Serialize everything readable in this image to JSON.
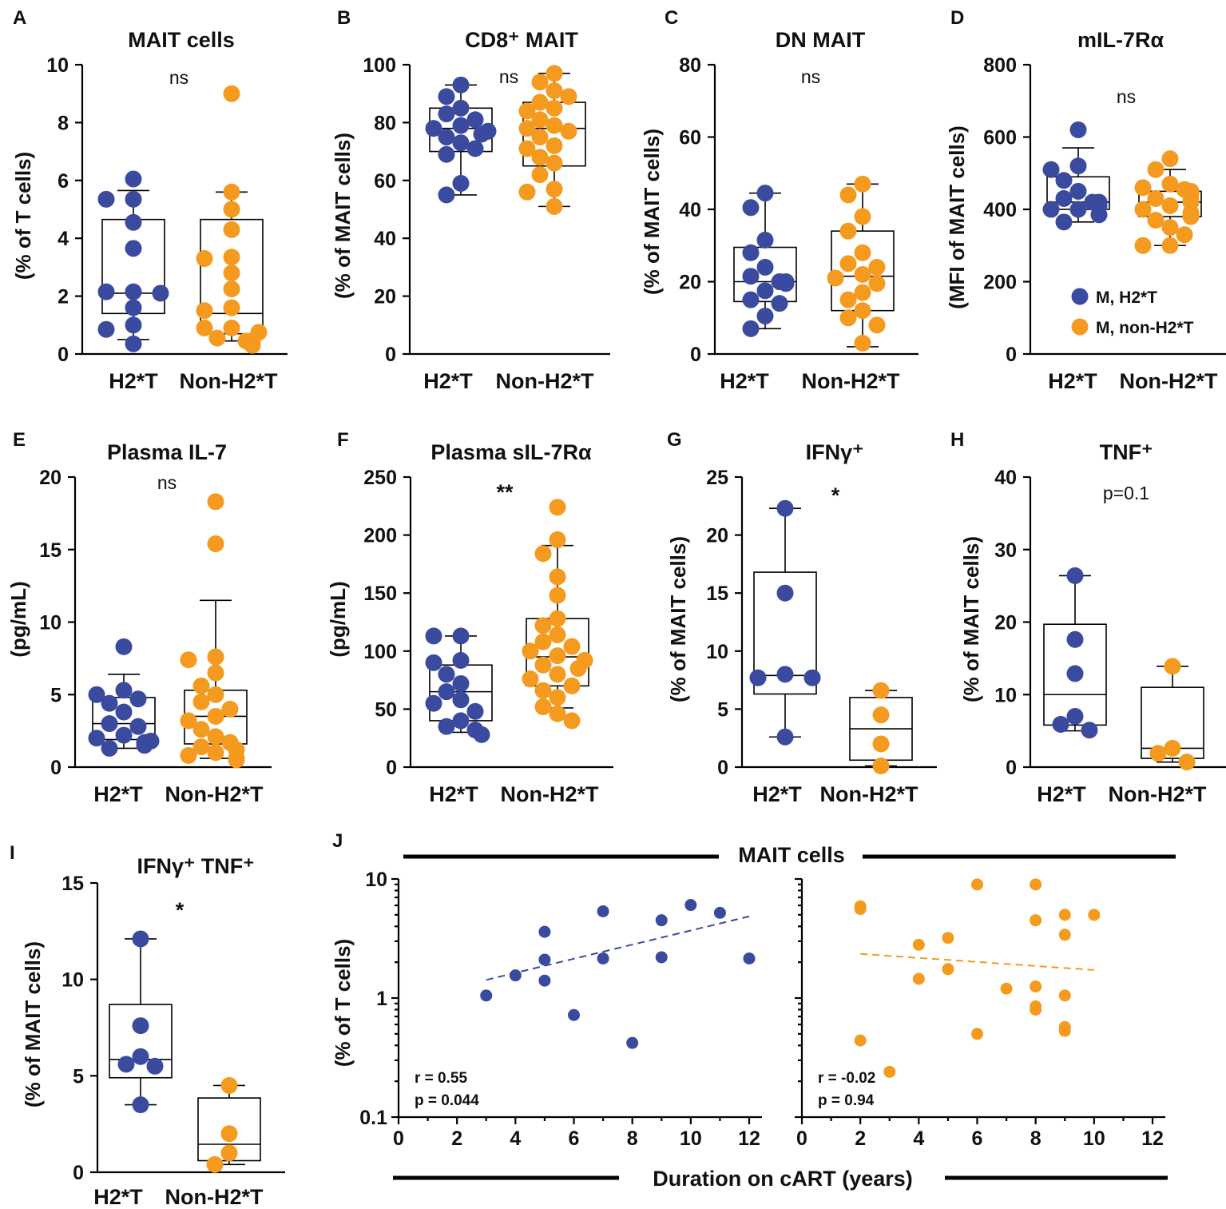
{
  "colors": {
    "h2t": "#3a4a9e",
    "nonh2t": "#f39a1f",
    "axis": "#000000"
  },
  "legend": {
    "items": [
      "M, H2*T",
      "M, non-H2*T"
    ]
  },
  "chart_data": [
    {
      "panel": "A",
      "type": "box",
      "title": "MAIT cells",
      "ylabel": "(% of  T cells)",
      "ylim": [
        0,
        10
      ],
      "yticks": [
        "0",
        "2",
        "4",
        "6",
        "8",
        "10"
      ],
      "categories": [
        "H2*T",
        "Non-H2*T"
      ],
      "sig": "ns",
      "series": [
        {
          "name": "H2*T",
          "box": [
            0.5,
            1.4,
            2.1,
            4.65,
            5.65
          ],
          "points": [
            6.05,
            5.35,
            5.35,
            4.55,
            3.65,
            2.15,
            2.15,
            2.1,
            1.6,
            1.0,
            0.85,
            0.35
          ]
        },
        {
          "name": "Non-H2*T",
          "box": [
            0.45,
            0.7,
            1.4,
            4.65,
            5.6
          ],
          "points": [
            9.0,
            5.6,
            5.0,
            4.3,
            3.35,
            3.3,
            2.8,
            2.25,
            1.6,
            1.5,
            0.9,
            0.9,
            0.75,
            0.55,
            0.45,
            0.45,
            0.3
          ]
        }
      ]
    },
    {
      "panel": "B",
      "type": "box",
      "title": "CD8⁺ MAIT",
      "ylabel": "(% of MAIT cells)",
      "ylim": [
        0,
        100
      ],
      "yticks": [
        "0",
        "20",
        "40",
        "60",
        "80",
        "100"
      ],
      "categories": [
        "H2*T",
        "Non-H2*T"
      ],
      "sig": "ns",
      "series": [
        {
          "name": "H2*T",
          "box": [
            55,
            70,
            78,
            85,
            93
          ],
          "points": [
            93,
            89,
            85,
            83,
            81,
            79,
            78,
            77,
            76,
            75,
            73,
            71,
            69,
            59,
            55
          ]
        },
        {
          "name": "Non-H2*T",
          "box": [
            51,
            65,
            78,
            87,
            97
          ],
          "points": [
            97,
            94,
            91,
            89,
            87,
            85,
            84,
            81,
            79,
            78,
            77,
            75,
            72,
            71,
            68,
            66,
            62,
            57,
            56,
            51
          ]
        }
      ]
    },
    {
      "panel": "C",
      "type": "box",
      "title": "DN MAIT",
      "ylabel": "(% of MAIT cells)",
      "ylim": [
        0,
        80
      ],
      "yticks": [
        "0",
        "20",
        "40",
        "60",
        "80"
      ],
      "categories": [
        "H2*T",
        "Non-H2*T"
      ],
      "sig": "ns",
      "series": [
        {
          "name": "H2*T",
          "box": [
            7,
            14.5,
            20,
            29.5,
            44.5
          ],
          "points": [
            44.5,
            40.5,
            31.5,
            28,
            24,
            21.5,
            20,
            20,
            19.5,
            17.5,
            15,
            14,
            10.5,
            7
          ]
        },
        {
          "name": "Non-H2*T",
          "box": [
            2,
            12,
            21.5,
            34,
            47
          ],
          "points": [
            47,
            44,
            38,
            34,
            28,
            25,
            24,
            22,
            21,
            19.5,
            17,
            15,
            12,
            10,
            8,
            3
          ]
        }
      ]
    },
    {
      "panel": "D",
      "type": "box",
      "title": "mIL-7Rα",
      "ylabel": "(MFI of MAIT cells)",
      "ylim": [
        0,
        800
      ],
      "yticks": [
        "0",
        "200",
        "400",
        "600",
        "800"
      ],
      "categories": [
        "H2*T",
        "Non-H2*T"
      ],
      "sig": "ns",
      "series": [
        {
          "name": "H2*T",
          "box": [
            365,
            400,
            420,
            490,
            570
          ],
          "points": [
            620,
            520,
            510,
            480,
            450,
            430,
            420,
            420,
            415,
            410,
            400,
            400,
            385,
            365
          ]
        },
        {
          "name": "Non-H2*T",
          "box": [
            300,
            380,
            420,
            450,
            510
          ],
          "points": [
            540,
            510,
            470,
            460,
            455,
            450,
            445,
            440,
            430,
            425,
            420,
            410,
            400,
            390,
            380,
            370,
            350,
            330,
            300,
            300
          ]
        }
      ]
    },
    {
      "panel": "E",
      "type": "box",
      "title": "Plasma IL-7",
      "ylabel": "(pg/mL)",
      "ylim": [
        0,
        20
      ],
      "yticks": [
        "0",
        "5",
        "10",
        "15",
        "20"
      ],
      "categories": [
        "H2*T",
        "Non-H2*T"
      ],
      "sig": "ns",
      "series": [
        {
          "name": "H2*T",
          "box": [
            1.3,
            1.9,
            3.0,
            4.8,
            6.4
          ],
          "points": [
            8.3,
            5.3,
            5.0,
            4.7,
            4.4,
            3.8,
            3.0,
            2.8,
            2.2,
            2.0,
            1.8,
            1.7,
            1.5,
            1.3
          ]
        },
        {
          "name": "Non-H2*T",
          "box": [
            0.6,
            1.6,
            3.5,
            5.3,
            11.5
          ],
          "points": [
            18.3,
            15.4,
            7.6,
            7.4,
            6.5,
            5.6,
            5.0,
            4.5,
            4.0,
            3.5,
            3.2,
            2.6,
            2.1,
            1.7,
            1.4,
            1.2,
            1.0,
            0.8,
            0.6,
            0.5
          ]
        }
      ]
    },
    {
      "panel": "F",
      "type": "box",
      "title": "Plasma sIL-7Rα",
      "ylabel": "(pg/mL)",
      "ylim": [
        0,
        250
      ],
      "yticks": [
        "0",
        "50",
        "100",
        "150",
        "200",
        "250"
      ],
      "categories": [
        "H2*T",
        "Non-H2*T"
      ],
      "sig": "**",
      "series": [
        {
          "name": "H2*T",
          "box": [
            30,
            40,
            65,
            88,
            113
          ],
          "points": [
            113,
            113,
            92,
            90,
            80,
            72,
            65,
            58,
            55,
            48,
            40,
            35,
            32,
            28
          ]
        },
        {
          "name": "Non-H2*T",
          "box": [
            51,
            70,
            95,
            128,
            191
          ],
          "points": [
            224,
            196,
            184,
            164,
            148,
            128,
            122,
            114,
            108,
            104,
            100,
            96,
            92,
            88,
            85,
            80,
            76,
            70,
            66,
            60,
            52,
            46,
            40
          ]
        }
      ]
    },
    {
      "panel": "G",
      "type": "box",
      "title": "IFNγ⁺",
      "ylabel": "(% of MAIT cells)",
      "ylim": [
        0,
        25
      ],
      "yticks": [
        "0",
        "5",
        "10",
        "15",
        "20",
        "25"
      ],
      "categories": [
        "H2*T",
        "Non-H2*T"
      ],
      "sig": "*",
      "series": [
        {
          "name": "H2*T",
          "box": [
            2.6,
            6.3,
            7.9,
            16.8,
            22.3
          ],
          "points": [
            22.3,
            15.0,
            8.0,
            7.7,
            7.7,
            2.6
          ]
        },
        {
          "name": "Non-H2*T",
          "box": [
            0.1,
            0.6,
            3.3,
            6.0,
            6.6
          ],
          "points": [
            6.6,
            4.5,
            2.0,
            0.1
          ]
        }
      ]
    },
    {
      "panel": "H",
      "type": "box",
      "title": "TNF⁺",
      "ylabel": "(% of MAIT cells)",
      "ylim": [
        0,
        40
      ],
      "yticks": [
        "0",
        "10",
        "20",
        "30",
        "40"
      ],
      "categories": [
        "H2*T",
        "Non-H2*T"
      ],
      "sig": "p=0.1",
      "series": [
        {
          "name": "H2*T",
          "box": [
            5,
            5.8,
            10,
            19.7,
            26.4
          ],
          "points": [
            26.4,
            17.6,
            12.9,
            7.0,
            5.9,
            5.1
          ]
        },
        {
          "name": "Non-H2*T",
          "box": [
            0.7,
            1.2,
            2.6,
            11.0,
            13.9
          ],
          "points": [
            13.9,
            2.6,
            1.9,
            0.7
          ]
        }
      ]
    },
    {
      "panel": "I",
      "type": "box",
      "title": "IFNγ⁺ TNF⁺",
      "ylabel": "(% of MAIT cells)",
      "ylim": [
        0,
        15
      ],
      "yticks": [
        "0",
        "5",
        "10",
        "15"
      ],
      "categories": [
        "H2*T",
        "Non-H2*T"
      ],
      "sig": "*",
      "series": [
        {
          "name": "H2*T",
          "box": [
            3.5,
            4.9,
            5.85,
            8.7,
            12.1
          ],
          "points": [
            12.1,
            7.6,
            6.0,
            5.6,
            5.5,
            3.5
          ]
        },
        {
          "name": "Non-H2*T",
          "box": [
            0.4,
            0.6,
            1.45,
            3.85,
            4.5
          ],
          "points": [
            4.5,
            2.0,
            1.0,
            0.4
          ]
        }
      ]
    },
    {
      "panel": "J",
      "type": "scatter",
      "title": "MAIT cells",
      "ylabel": "(% of  T cells)",
      "xlabel": "Duration on cART (years)",
      "yscale": "log",
      "ylim": [
        0.1,
        10
      ],
      "yticks": [
        "0.1",
        "1",
        "10"
      ],
      "xlim": [
        0,
        12
      ],
      "xticks": [
        "0",
        "2",
        "4",
        "6",
        "8",
        "10",
        "12"
      ],
      "series": [
        {
          "name": "H2*T",
          "x": [
            3,
            4,
            5,
            5,
            5,
            6,
            7,
            7,
            8,
            9,
            9,
            10,
            11,
            12
          ],
          "y": [
            1.05,
            1.55,
            3.6,
            2.1,
            1.4,
            0.72,
            5.35,
            2.15,
            0.42,
            4.5,
            2.2,
            6.05,
            5.2,
            2.15
          ],
          "fit": [
            [
              3,
              1.42
            ],
            [
              12,
              4.85
            ]
          ],
          "stats": [
            "r = 0.55",
            "p = 0.044"
          ]
        },
        {
          "name": "Non-H2*T",
          "x": [
            2,
            2,
            2,
            3,
            4,
            4,
            5,
            5,
            6,
            6,
            7,
            8,
            8,
            8,
            8,
            8,
            9,
            9,
            9,
            9,
            9,
            10
          ],
          "y": [
            5.9,
            5.6,
            0.44,
            0.24,
            2.8,
            1.45,
            3.2,
            1.75,
            9.0,
            0.5,
            1.2,
            9.0,
            4.5,
            1.25,
            0.85,
            0.8,
            5.0,
            3.4,
            1.05,
            0.57,
            0.53,
            5.0
          ],
          "fit": [
            [
              2,
              2.35
            ],
            [
              10,
              1.72
            ]
          ],
          "stats": [
            "r = -0.02",
            "p = 0.94"
          ]
        }
      ]
    }
  ]
}
